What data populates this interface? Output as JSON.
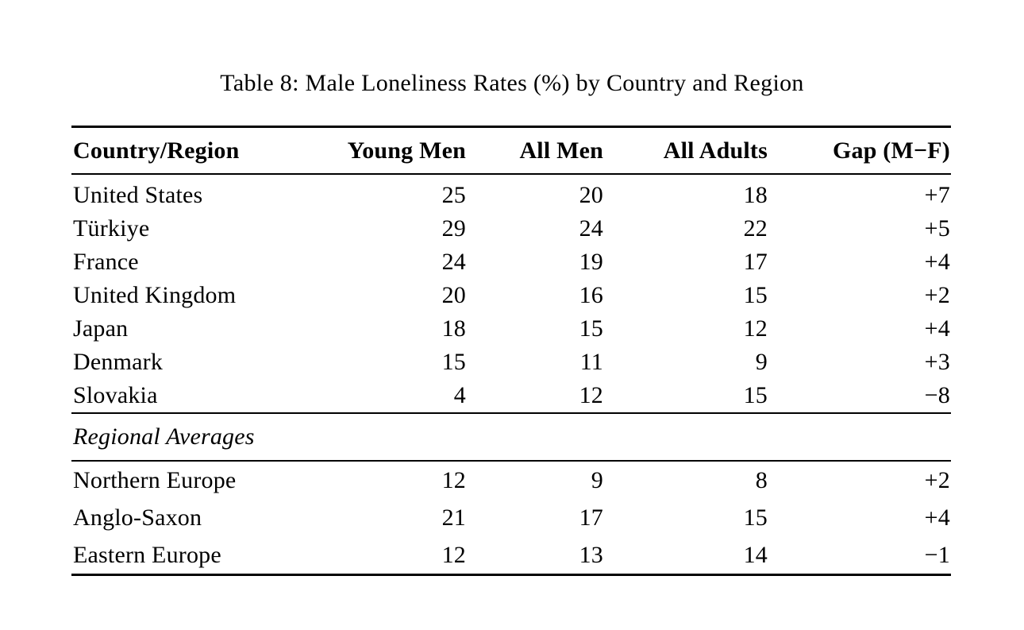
{
  "caption": "Table 8: Male Loneliness Rates (%) by Country and Region",
  "table": {
    "columns": [
      "Country/Region",
      "Young Men",
      "All Men",
      "All Adults",
      "Gap (M−F)"
    ],
    "country_rows": [
      {
        "label": "United States",
        "values": [
          "25",
          "20",
          "18",
          "+7"
        ]
      },
      {
        "label": "Türkiye",
        "values": [
          "29",
          "24",
          "22",
          "+5"
        ]
      },
      {
        "label": "France",
        "values": [
          "24",
          "19",
          "17",
          "+4"
        ]
      },
      {
        "label": "United Kingdom",
        "values": [
          "20",
          "16",
          "15",
          "+2"
        ]
      },
      {
        "label": "Japan",
        "values": [
          "18",
          "15",
          "12",
          "+4"
        ]
      },
      {
        "label": "Denmark",
        "values": [
          "15",
          "11",
          "9",
          "+3"
        ]
      },
      {
        "label": "Slovakia",
        "values": [
          "4",
          "12",
          "15",
          "−8"
        ]
      }
    ],
    "section_label": "Regional Averages",
    "region_rows": [
      {
        "label": "Northern Europe",
        "values": [
          "12",
          "9",
          "8",
          "+2"
        ]
      },
      {
        "label": "Anglo-Saxon",
        "values": [
          "21",
          "17",
          "15",
          "+4"
        ]
      },
      {
        "label": "Eastern Europe",
        "values": [
          "12",
          "13",
          "14",
          "−1"
        ]
      }
    ]
  }
}
